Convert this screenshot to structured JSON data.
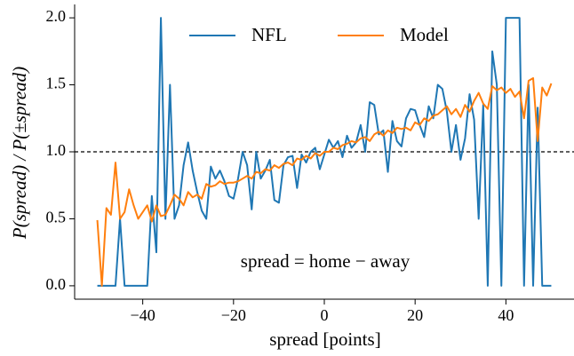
{
  "chart_data": {
    "type": "line",
    "xlabel": "spread [points]",
    "ylabel": "P(spread) / P(±spread)",
    "annotation": "spread = home − away",
    "hline": 1.0,
    "legend": "upper center",
    "xlim": [
      -55,
      55
    ],
    "ylim": [
      -0.1,
      2.1
    ],
    "xticks": [
      {
        "value": -40,
        "label": "−40"
      },
      {
        "value": -20,
        "label": "−20"
      },
      0,
      20,
      40
    ],
    "yticks": [
      {
        "value": 0,
        "label": "0.0"
      },
      0.5,
      {
        "value": 1,
        "label": "1.0"
      },
      1.5,
      {
        "value": 2,
        "label": "2.0"
      }
    ],
    "x": [
      -50,
      -49,
      -48,
      -47,
      -46,
      -45,
      -44,
      -43,
      -42,
      -41,
      -40,
      -39,
      -38,
      -37,
      -36,
      -35,
      -34,
      -33,
      -32,
      -31,
      -30,
      -29,
      -28,
      -27,
      -26,
      -25,
      -24,
      -23,
      -22,
      -21,
      -20,
      -19,
      -18,
      -17,
      -16,
      -15,
      -14,
      -13,
      -12,
      -11,
      -10,
      -9,
      -8,
      -7,
      -6,
      -5,
      -4,
      -3,
      -2,
      -1,
      0,
      1,
      2,
      3,
      4,
      5,
      6,
      7,
      8,
      9,
      10,
      11,
      12,
      13,
      14,
      15,
      16,
      17,
      18,
      19,
      20,
      21,
      22,
      23,
      24,
      25,
      26,
      27,
      28,
      29,
      30,
      31,
      32,
      33,
      34,
      35,
      36,
      37,
      38,
      39,
      40,
      41,
      42,
      43,
      44,
      45,
      46,
      47,
      48,
      49,
      50
    ],
    "series": [
      {
        "name": "NFL",
        "color": "#1f77b4",
        "values": [
          0,
          0,
          0,
          0,
          0,
          0.5,
          0,
          0,
          0,
          0,
          0,
          0,
          0.67,
          0.25,
          2.0,
          0.5,
          1.5,
          0.5,
          0.6,
          0.9,
          1.07,
          0.86,
          0.7,
          0.56,
          0.5,
          0.89,
          0.8,
          0.86,
          0.78,
          0.67,
          0.65,
          0.8,
          1.0,
          0.9,
          0.57,
          1.0,
          0.8,
          0.86,
          0.94,
          0.64,
          0.62,
          0.9,
          0.96,
          0.97,
          0.73,
          0.98,
          0.92,
          1.0,
          1.03,
          0.87,
          0.98,
          1.09,
          1.03,
          1.08,
          0.96,
          1.12,
          1.03,
          1.07,
          1.2,
          1.0,
          1.37,
          1.35,
          1.13,
          1.16,
          0.85,
          1.23,
          1.08,
          1.04,
          1.25,
          1.32,
          1.31,
          1.2,
          1.11,
          1.34,
          1.25,
          1.5,
          1.47,
          1.3,
          1.0,
          1.2,
          0.94,
          1.1,
          1.43,
          1.24,
          0.5,
          1.35,
          0,
          1.75,
          1.5,
          0,
          2.0,
          2.0,
          2.0,
          2.0,
          0,
          1.5,
          0,
          1.33,
          0,
          0,
          0
        ]
      },
      {
        "name": "Model",
        "color": "#ff7f0e",
        "values": [
          0.49,
          0.0,
          0.58,
          0.53,
          0.92,
          0.5,
          0.55,
          0.72,
          0.6,
          0.5,
          0.55,
          0.6,
          0.48,
          0.6,
          0.52,
          0.53,
          0.6,
          0.68,
          0.65,
          0.6,
          0.7,
          0.66,
          0.68,
          0.65,
          0.76,
          0.74,
          0.75,
          0.78,
          0.76,
          0.77,
          0.77,
          0.78,
          0.8,
          0.82,
          0.8,
          0.85,
          0.84,
          0.87,
          0.86,
          0.9,
          0.88,
          0.91,
          0.92,
          0.9,
          0.95,
          0.94,
          0.97,
          0.95,
          0.99,
          0.97,
          1.0,
          1.0,
          1.03,
          1.02,
          1.05,
          1.06,
          1.08,
          1.07,
          1.1,
          1.11,
          1.08,
          1.13,
          1.15,
          1.12,
          1.16,
          1.14,
          1.18,
          1.17,
          1.18,
          1.16,
          1.22,
          1.2,
          1.25,
          1.23,
          1.27,
          1.28,
          1.31,
          1.34,
          1.28,
          1.32,
          1.26,
          1.35,
          1.3,
          1.38,
          1.44,
          1.36,
          1.32,
          1.49,
          1.46,
          1.48,
          1.44,
          1.47,
          1.41,
          1.45,
          1.25,
          1.53,
          1.55,
          1.08,
          1.48,
          1.42,
          1.51
        ]
      }
    ]
  }
}
